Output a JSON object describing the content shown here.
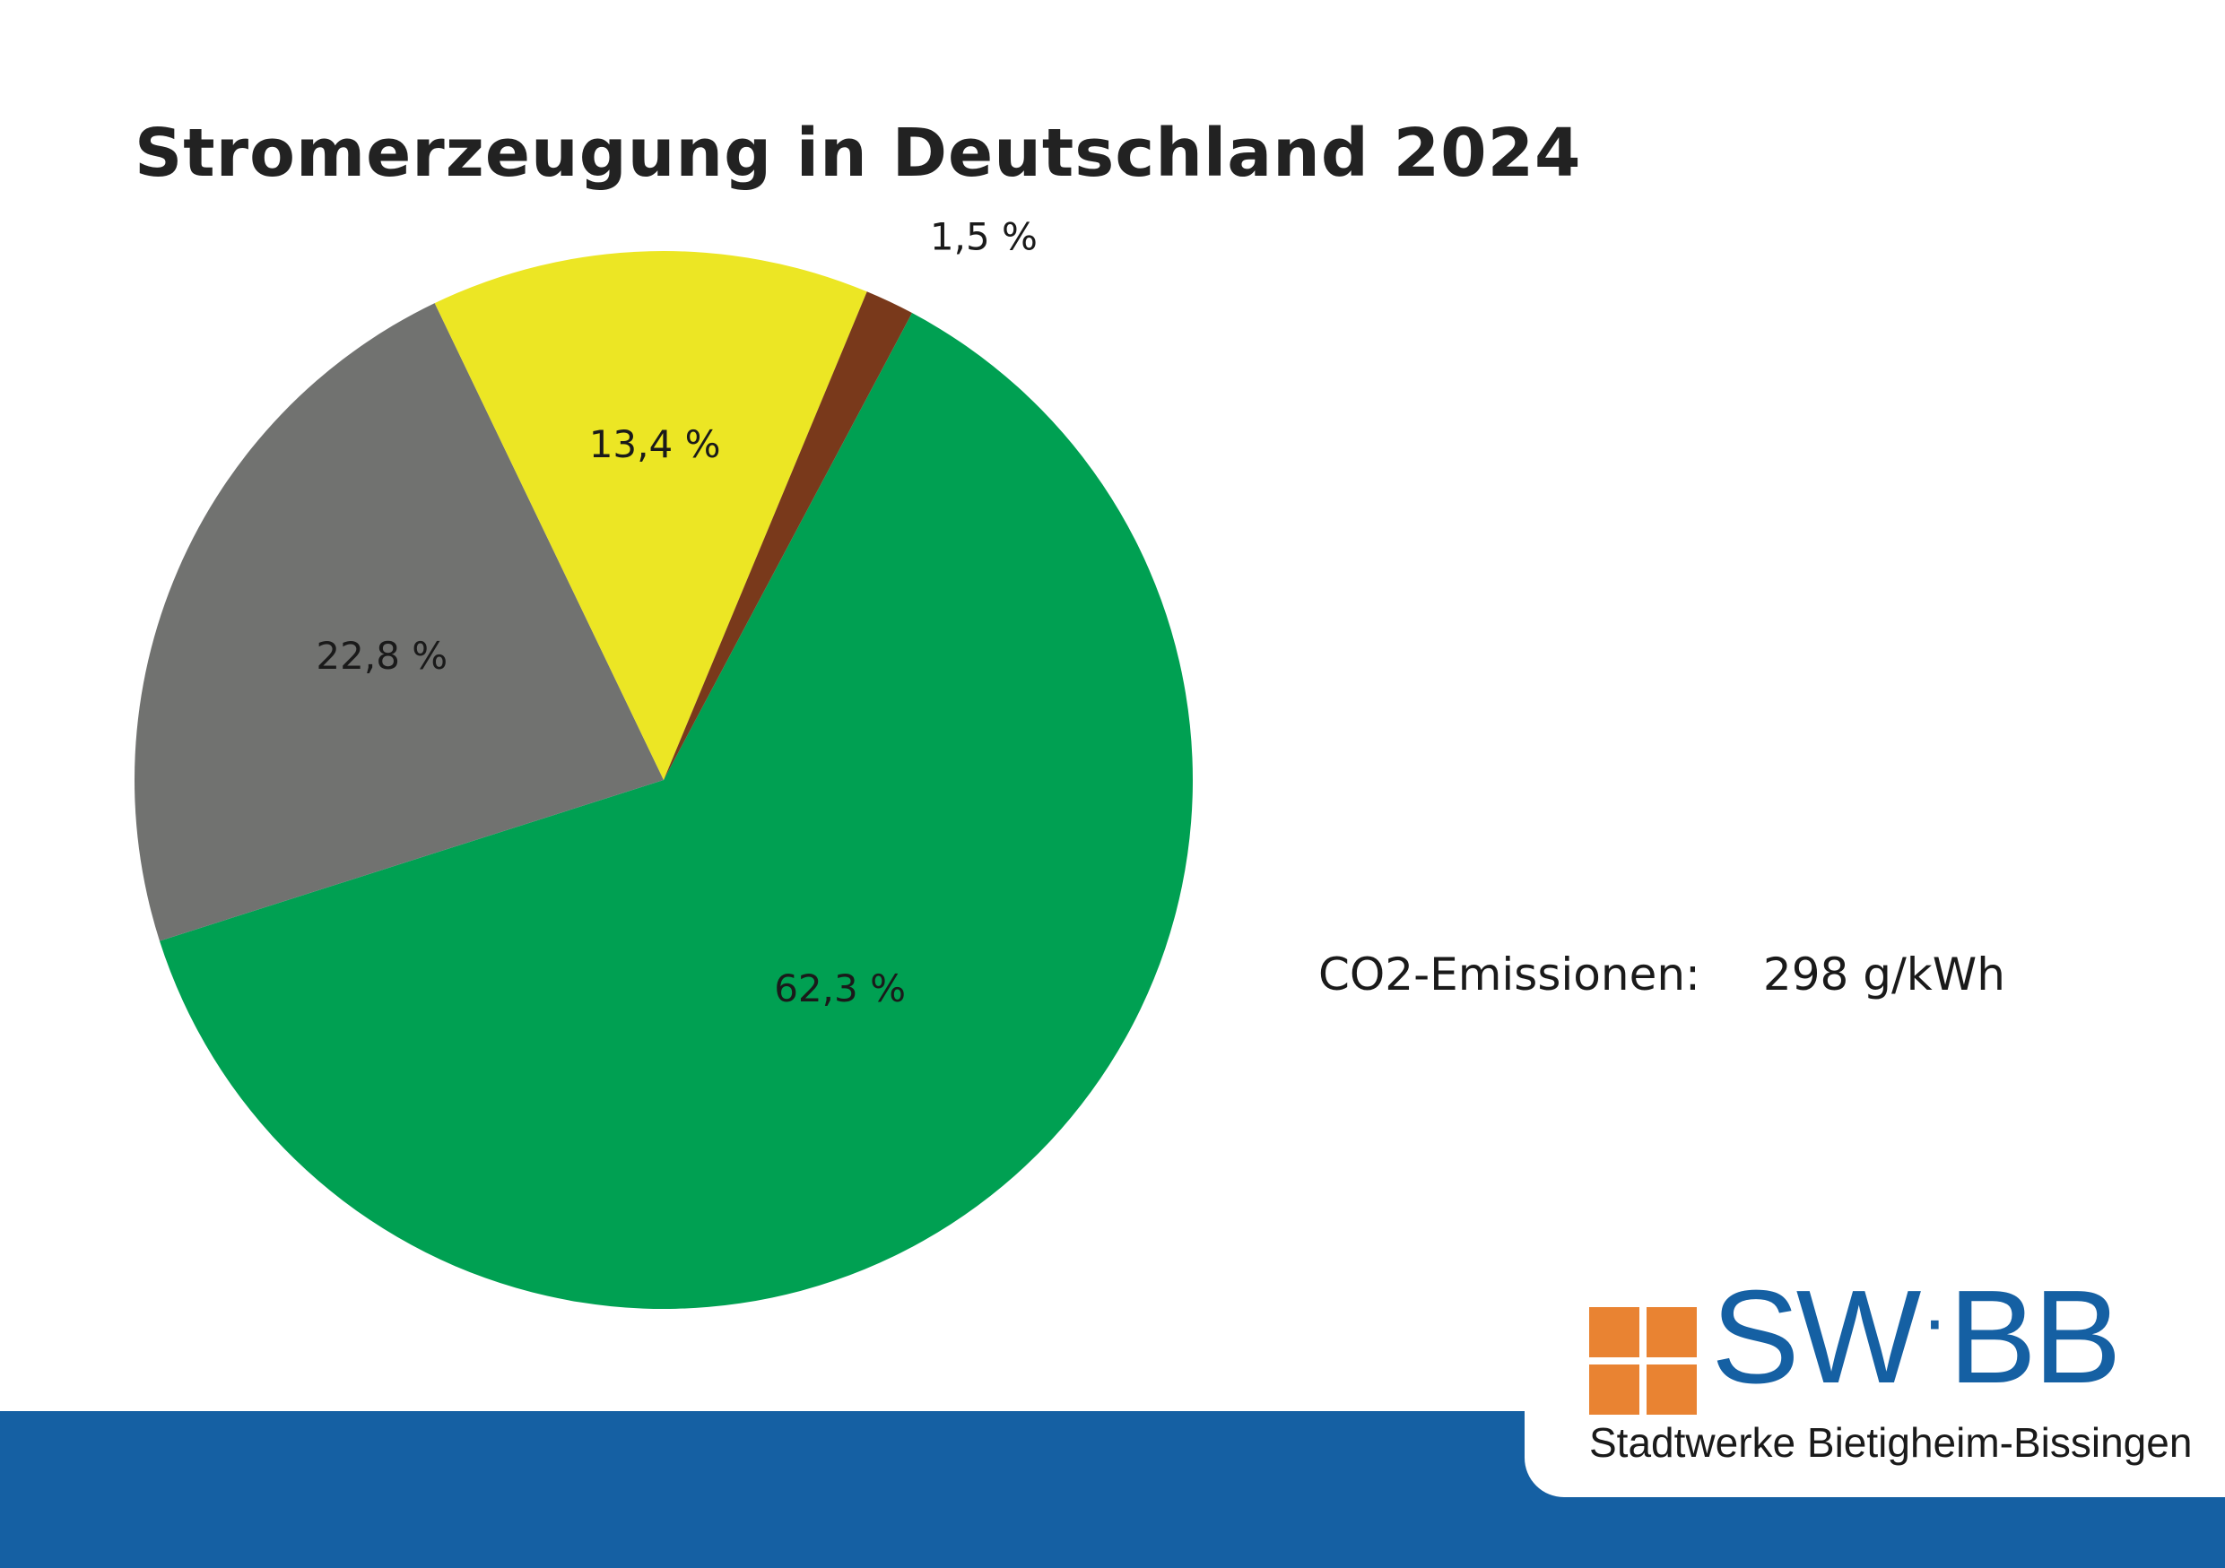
{
  "page": {
    "title": "Stromerzeugung in Deutschland 2024",
    "co2_label": "CO2-Emissionen:",
    "co2_value": "298 g/kWh"
  },
  "logo": {
    "mark_left": "SW",
    "mark_dot": "·",
    "mark_right": "BB",
    "subtitle": "Stadtwerke Bietigheim-Bissingen",
    "brand_blue": "#1560a3",
    "brand_orange": "#e98332"
  },
  "chart_data": {
    "type": "pie",
    "title": "Stromerzeugung in Deutschland 2024",
    "slices": [
      {
        "value": 62.3,
        "label": "62,3 %",
        "color": "#00a052"
      },
      {
        "value": 22.8,
        "label": "22,8 %",
        "color": "#717270"
      },
      {
        "value": 13.4,
        "label": "13,4 %",
        "color": "#ece624"
      },
      {
        "value": 1.5,
        "label": "1,5 %",
        "color": "#79391b"
      }
    ]
  }
}
